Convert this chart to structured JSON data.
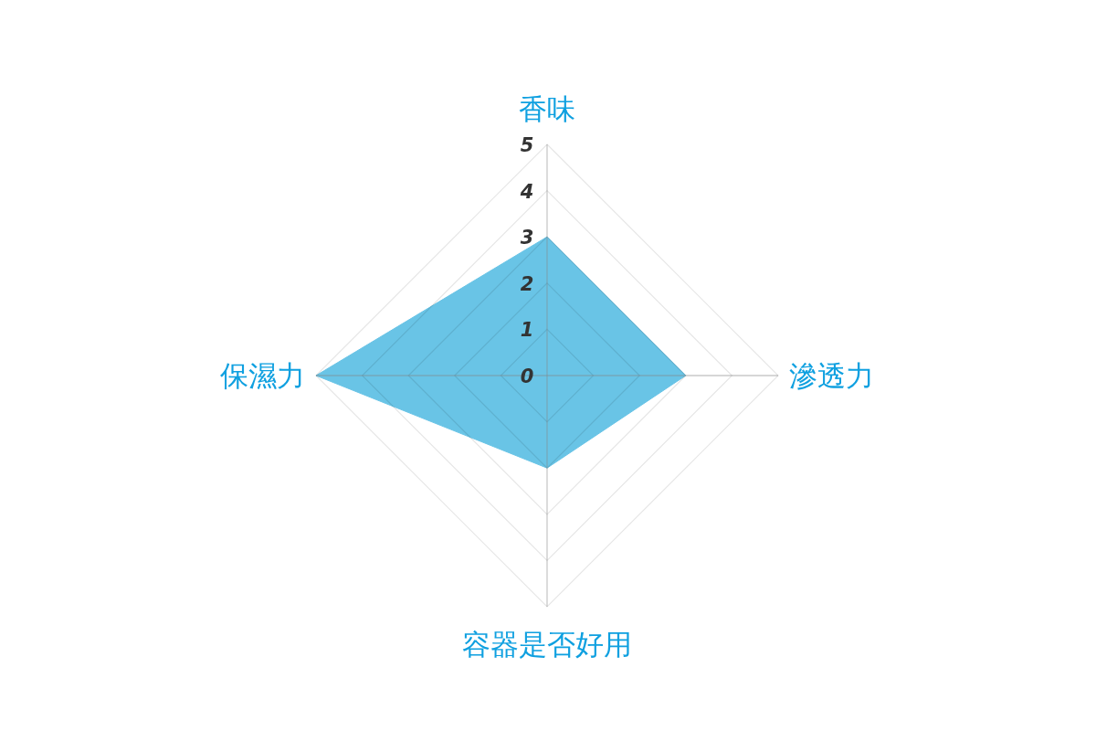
{
  "chart_data": {
    "type": "radar",
    "categories": [
      "香味",
      "滲透力",
      "容器是否好用",
      "保濕力"
    ],
    "series": [
      {
        "color": "#69c4e6",
        "values": [
          3,
          3,
          2,
          5
        ]
      }
    ],
    "ylim": [
      0,
      5
    ],
    "yticks": [
      0,
      1,
      2,
      3,
      4,
      5
    ],
    "grid": true
  }
}
